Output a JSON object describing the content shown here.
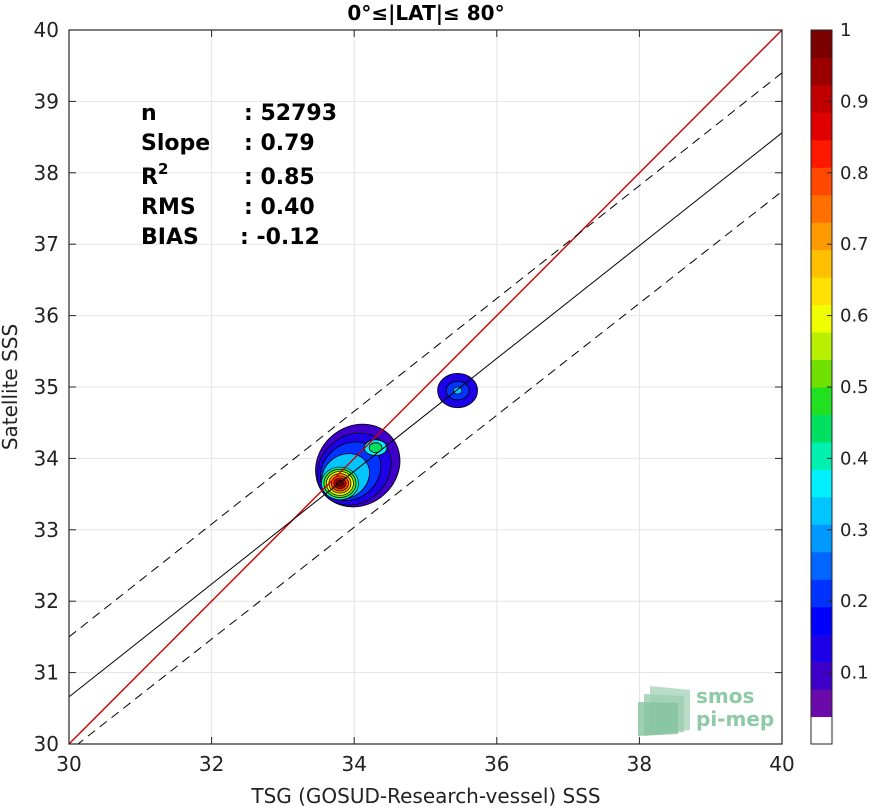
{
  "chart_data": {
    "type": "contour",
    "title": "0°≤|LAT|≤ 80°",
    "xlabel": "TSG (GOSUD-Research-vessel) SSS",
    "ylabel": "Satellite SSS",
    "xlim": [
      30,
      40
    ],
    "ylim": [
      30,
      40
    ],
    "xticks": [
      30,
      32,
      34,
      36,
      38,
      40
    ],
    "yticks": [
      30,
      31,
      32,
      33,
      34,
      35,
      36,
      37,
      38,
      39,
      40
    ],
    "grid": true,
    "stats": [
      {
        "label": "n",
        "value": ": 52793"
      },
      {
        "label": "Slope",
        "value": ": 0.79"
      },
      {
        "label": "R",
        "sup": "2",
        "value": ": 0.85"
      },
      {
        "label": "RMS",
        "value": ": 0.40"
      },
      {
        "label": "BIAS",
        "value": ": -0.12"
      }
    ],
    "lines": {
      "identity": {
        "points": [
          [
            30,
            30
          ],
          [
            40,
            40
          ]
        ],
        "color": "#cc0000"
      },
      "regression": {
        "points": [
          [
            30,
            30.66
          ],
          [
            40,
            38.56
          ]
        ],
        "color": "#000000"
      },
      "upper_band": {
        "points": [
          [
            30,
            31.5
          ],
          [
            40,
            39.4
          ]
        ],
        "color": "#000000",
        "dashed": true
      },
      "lower_band": {
        "points": [
          [
            30.1,
            29.98
          ],
          [
            40,
            37.74
          ]
        ],
        "color": "#000000",
        "dashed": true
      }
    },
    "density_peaks": [
      {
        "x": 33.8,
        "y": 33.65,
        "value": 1.0
      },
      {
        "x": 34.3,
        "y": 34.15,
        "value": 0.45
      },
      {
        "x": 35.45,
        "y": 34.95,
        "value": 0.3
      }
    ],
    "colorbar": {
      "range": [
        0,
        1
      ],
      "ticks": [
        "0.1",
        "0.2",
        "0.3",
        "0.4",
        "0.5",
        "0.6",
        "0.7",
        "0.8",
        "0.9",
        "1"
      ],
      "colors": [
        "#ffffff",
        "#6a0aab",
        "#3e00c9",
        "#1c00e6",
        "#0000ff",
        "#0033ff",
        "#0066ff",
        "#0099ff",
        "#00c5ff",
        "#00f0ff",
        "#00f0b0",
        "#00e060",
        "#20e020",
        "#70e000",
        "#b8f000",
        "#f0ff00",
        "#ffe000",
        "#ffc000",
        "#ff9900",
        "#ff7000",
        "#ff4800",
        "#ff1800",
        "#e00000",
        "#c00000",
        "#9a0000",
        "#7a0000"
      ]
    }
  },
  "logo": {
    "line1": "smos",
    "line2": "pi-mep"
  }
}
